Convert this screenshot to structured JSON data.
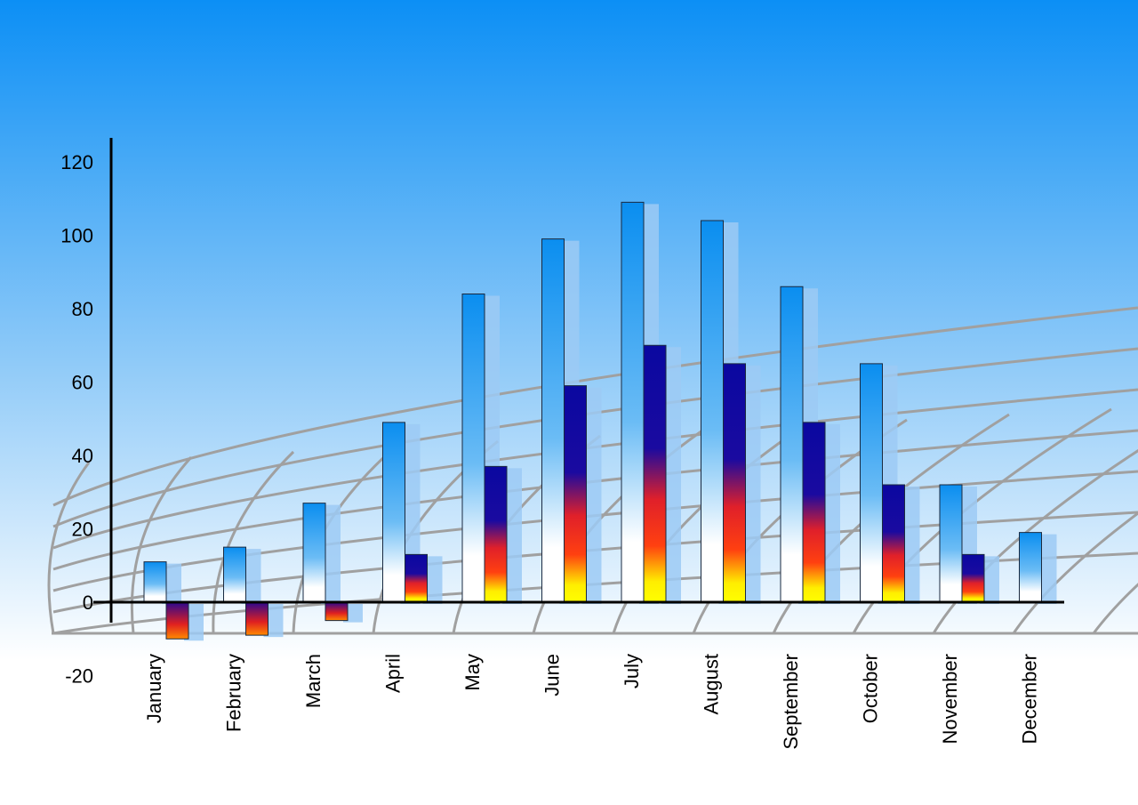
{
  "chart_data": {
    "type": "bar",
    "title": "",
    "xlabel": "",
    "ylabel": "",
    "ylim": [
      -20,
      120
    ],
    "yticks": [
      -20,
      0,
      20,
      40,
      60,
      80,
      100,
      120
    ],
    "categories": [
      "January",
      "February",
      "March",
      "April",
      "May",
      "June",
      "July",
      "August",
      "September",
      "October",
      "November",
      "December"
    ],
    "series": [
      {
        "values": [
          11,
          15,
          27,
          49,
          84,
          99,
          109,
          104,
          86,
          65,
          32,
          19
        ],
        "color": "#0f8ef0"
      },
      {
        "values": [
          -10,
          -9,
          -5,
          13,
          37,
          59,
          70,
          65,
          49,
          32,
          13,
          null
        ],
        "color": "#0a0aa0"
      }
    ],
    "grid": false,
    "legend": "none",
    "background": [
      "#1094f5",
      "#ffffff"
    ]
  }
}
